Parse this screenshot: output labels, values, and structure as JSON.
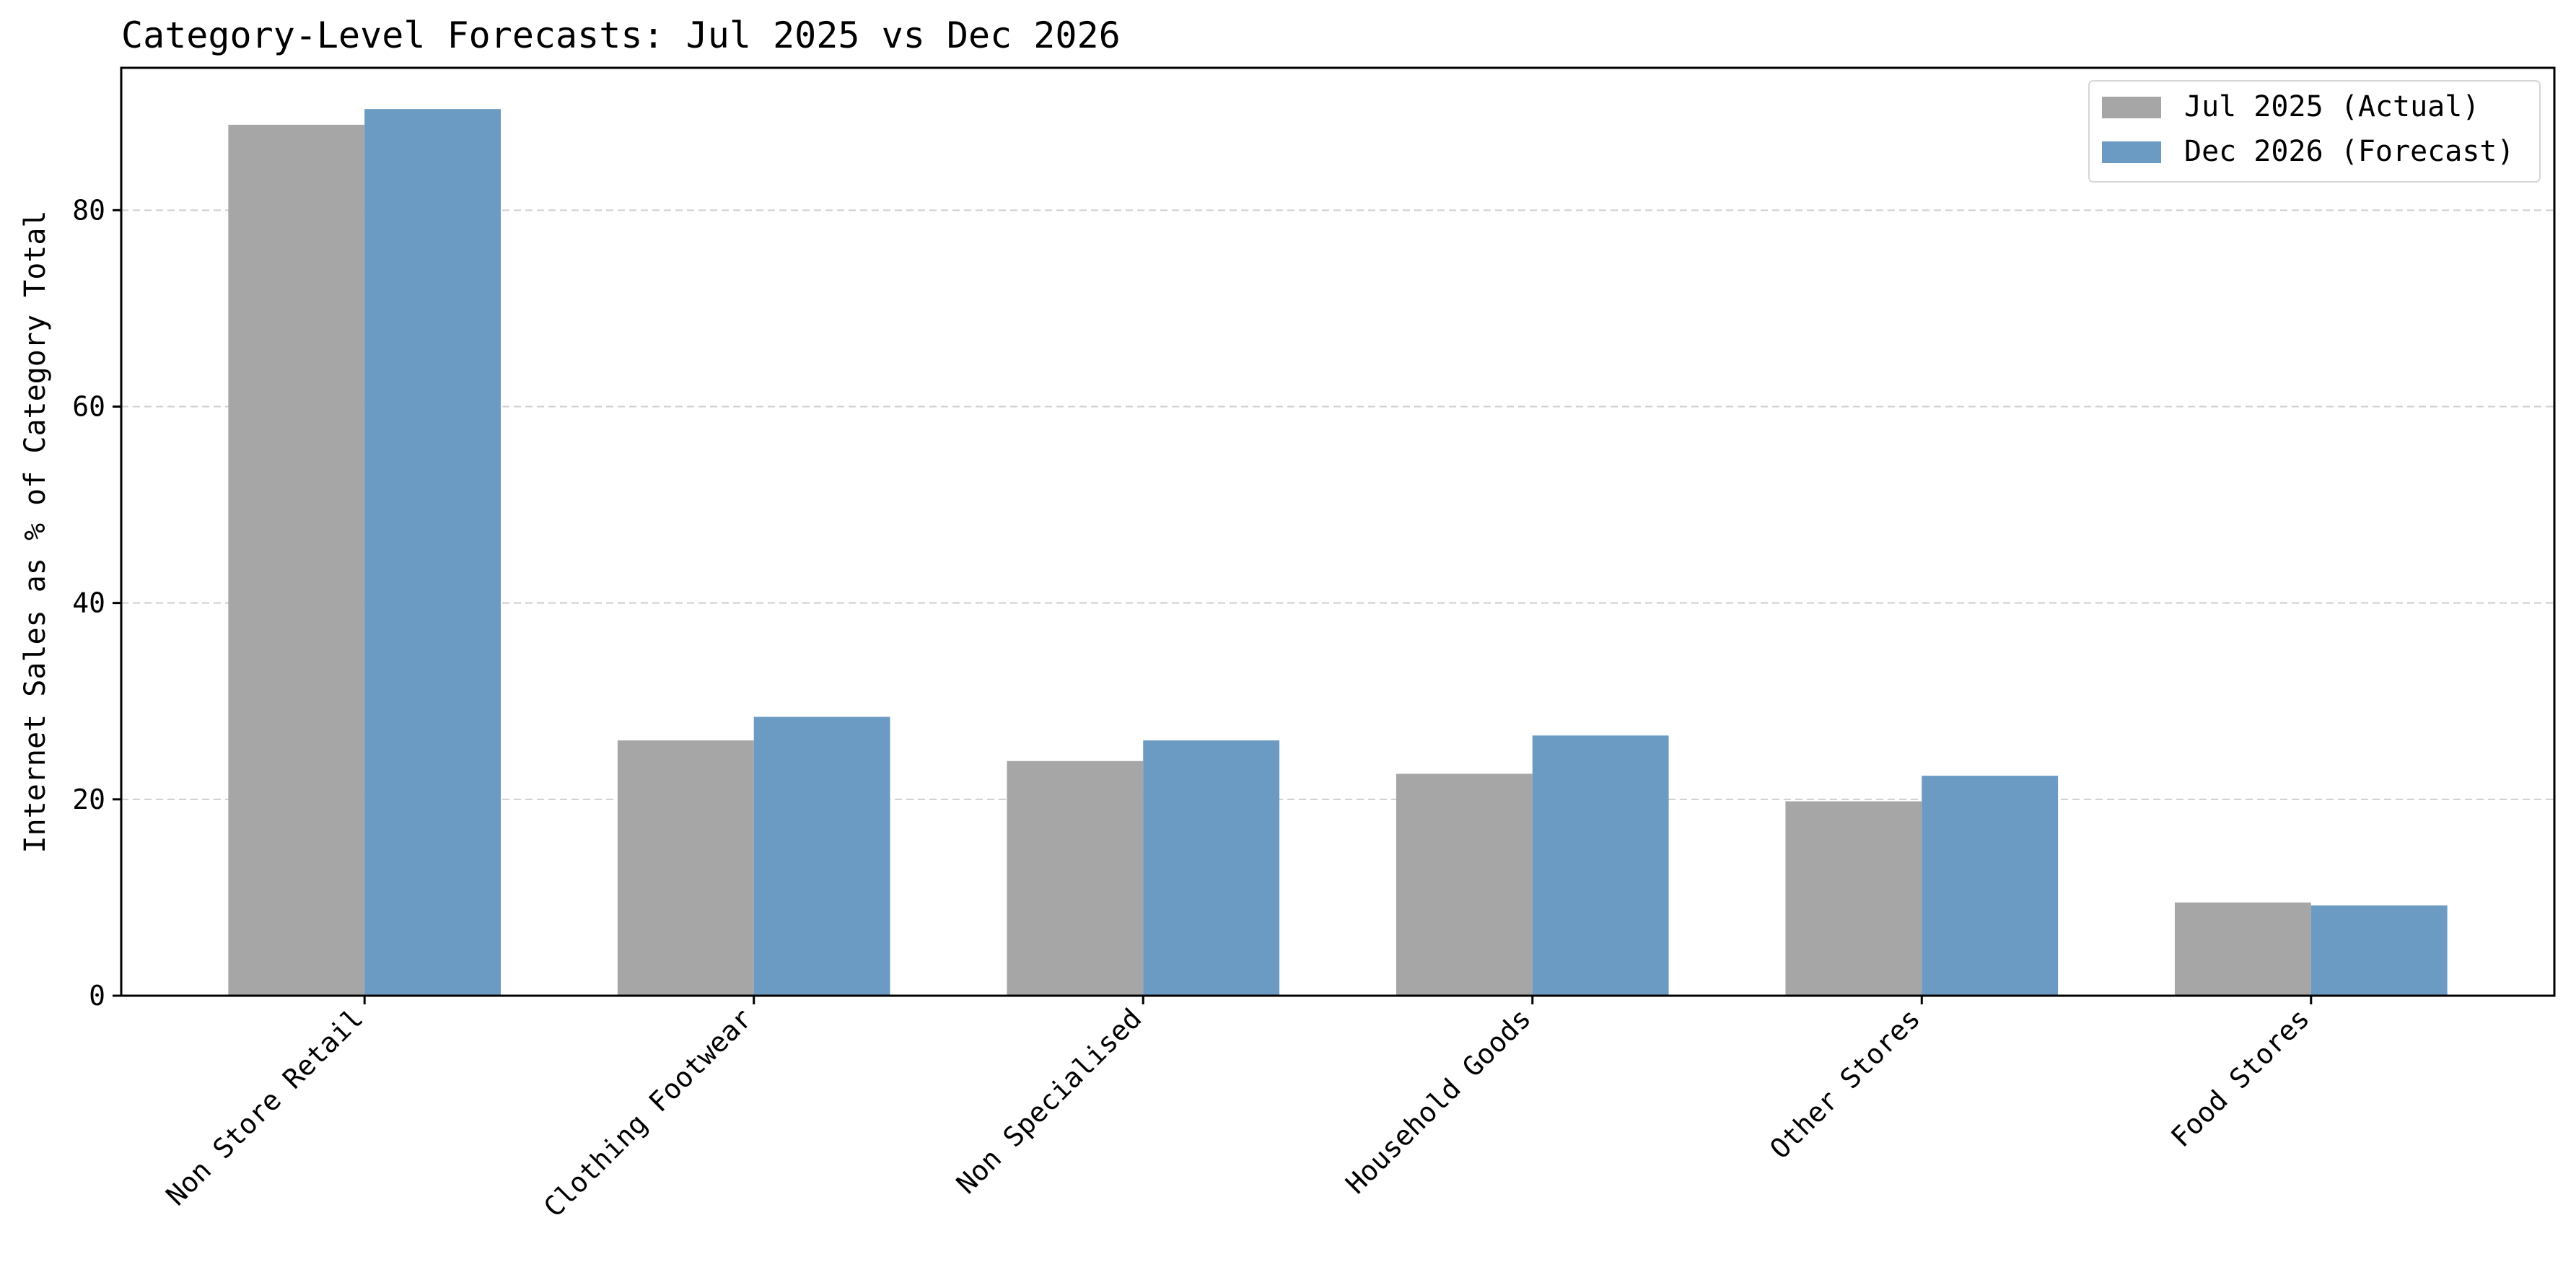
{
  "chart_data": {
    "type": "bar",
    "title": "Category-Level Forecasts: Jul 2025 vs Dec 2026",
    "xlabel": "",
    "ylabel": "Internet Sales as % of Category Total",
    "categories": [
      "Non Store Retail",
      "Clothing Footwear",
      "Non Specialised",
      "Household Goods",
      "Other Stores",
      "Food Stores"
    ],
    "series": [
      {
        "name": "Jul 2025 (Actual)",
        "color": "#a6a6a6",
        "values": [
          88.7,
          26.0,
          23.9,
          22.6,
          19.8,
          9.5
        ]
      },
      {
        "name": "Dec 2026 (Forecast)",
        "color": "#6b9bc3",
        "values": [
          90.3,
          28.4,
          26.0,
          26.5,
          22.4,
          9.2
        ]
      }
    ],
    "ylim": [
      0,
      94.5
    ],
    "yticks": [
      0,
      20,
      40,
      60,
      80
    ],
    "grid": "y-dashed",
    "legend_position": "top-right"
  }
}
